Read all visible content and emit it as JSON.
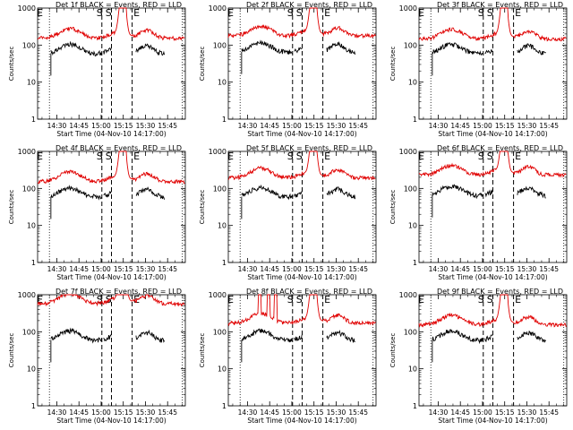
{
  "figure": {
    "x_tick_labels": [
      "14:30",
      "14:45",
      "15:00",
      "15:15",
      "15:30",
      "15:45"
    ],
    "x_label": "Start Time (04-Nov-10 14:17:00)",
    "y_label": "Counts/sec",
    "y_tick_labels": [
      "1",
      "10",
      "100",
      "1000"
    ],
    "marker_letters": {
      "E": "E",
      "S": "S"
    },
    "colors": {
      "events": "#000000",
      "lld": "#e00000",
      "axes": "#000000",
      "background": "#ffffff"
    }
  },
  "chart_data": [
    {
      "type": "line",
      "detector": "1f",
      "title": "Det 1f BLACK = Events, RED = LLD",
      "y_scale": "log",
      "ylim": [
        1,
        1000
      ],
      "xlim_minutes": [
        0,
        100
      ],
      "black_level": 100,
      "red_level": 200,
      "series": [
        {
          "name": "BLACK = Events",
          "color": "#000000"
        },
        {
          "name": "RED = LLD",
          "color": "#e00000"
        }
      ]
    },
    {
      "type": "line",
      "detector": "2f",
      "title": "Det 2f BLACK = Events, RED = LLD",
      "y_scale": "log",
      "ylim": [
        1,
        1000
      ],
      "xlim_minutes": [
        0,
        100
      ],
      "black_level": 110,
      "red_level": 230,
      "series": [
        {
          "name": "BLACK = Events",
          "color": "#000000"
        },
        {
          "name": "RED = LLD",
          "color": "#e00000"
        }
      ]
    },
    {
      "type": "line",
      "detector": "3f",
      "title": "Det 3f BLACK = Events, RED = LLD",
      "y_scale": "log",
      "ylim": [
        1,
        1000
      ],
      "xlim_minutes": [
        0,
        100
      ],
      "black_level": 100,
      "red_level": 190,
      "series": [
        {
          "name": "BLACK = Events",
          "color": "#000000"
        },
        {
          "name": "RED = LLD",
          "color": "#e00000"
        }
      ]
    },
    {
      "type": "line",
      "detector": "4f",
      "title": "Det 4f BLACK = Events, RED = LLD",
      "y_scale": "log",
      "ylim": [
        1,
        1000
      ],
      "xlim_minutes": [
        0,
        100
      ],
      "black_level": 100,
      "red_level": 200,
      "series": [
        {
          "name": "BLACK = Events",
          "color": "#000000"
        },
        {
          "name": "RED = LLD",
          "color": "#e00000"
        }
      ]
    },
    {
      "type": "line",
      "detector": "5f",
      "title": "Det 5f BLACK = Events, RED = LLD",
      "y_scale": "log",
      "ylim": [
        1,
        1000
      ],
      "xlim_minutes": [
        0,
        100
      ],
      "black_level": 100,
      "red_level": 250,
      "series": [
        {
          "name": "BLACK = Events",
          "color": "#000000"
        },
        {
          "name": "RED = LLD",
          "color": "#e00000"
        }
      ]
    },
    {
      "type": "line",
      "detector": "6f",
      "title": "Det 6f BLACK = Events, RED = LLD",
      "y_scale": "log",
      "ylim": [
        1,
        1000
      ],
      "xlim_minutes": [
        0,
        100
      ],
      "black_level": 110,
      "red_level": 300,
      "series": [
        {
          "name": "BLACK = Events",
          "color": "#000000"
        },
        {
          "name": "RED = LLD",
          "color": "#e00000"
        }
      ]
    },
    {
      "type": "line",
      "detector": "7f",
      "title": "Det 7f BLACK = Events, RED = LLD",
      "y_scale": "log",
      "ylim": [
        1,
        1000
      ],
      "xlim_minutes": [
        0,
        100
      ],
      "black_level": 100,
      "red_level": 750,
      "series": [
        {
          "name": "BLACK = Events",
          "color": "#000000"
        },
        {
          "name": "RED = LLD",
          "color": "#e00000"
        }
      ]
    },
    {
      "type": "line",
      "detector": "8f",
      "title": "Det 8f BLACK = Events, RED = LLD",
      "y_scale": "log",
      "ylim": [
        1,
        1000
      ],
      "xlim_minutes": [
        0,
        100
      ],
      "black_level": 100,
      "red_level": 220,
      "series": [
        {
          "name": "BLACK = Events",
          "color": "#000000"
        },
        {
          "name": "RED = LLD",
          "color": "#e00000"
        }
      ]
    },
    {
      "type": "line",
      "detector": "9f",
      "title": "Det 9f BLACK = Events, RED = LLD",
      "y_scale": "log",
      "ylim": [
        1,
        1000
      ],
      "xlim_minutes": [
        0,
        100
      ],
      "black_level": 100,
      "red_level": 200,
      "series": [
        {
          "name": "BLACK = Events",
          "color": "#000000"
        },
        {
          "name": "RED = LLD",
          "color": "#e00000"
        }
      ]
    }
  ]
}
